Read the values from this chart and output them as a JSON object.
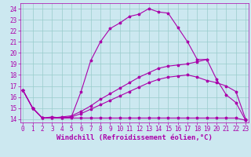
{
  "xlabel": "Windchill (Refroidissement éolien,°C)",
  "bg_color": "#cce8f0",
  "line_color": "#aa00aa",
  "grid_color": "#99cccc",
  "x_ticks": [
    0,
    1,
    2,
    3,
    4,
    5,
    6,
    7,
    8,
    9,
    10,
    11,
    12,
    13,
    14,
    15,
    16,
    17,
    18,
    19,
    20,
    21,
    22,
    23
  ],
  "y_ticks": [
    14,
    15,
    16,
    17,
    18,
    19,
    20,
    21,
    22,
    23,
    24
  ],
  "xlim": [
    -0.3,
    23.3
  ],
  "ylim": [
    13.7,
    24.5
  ],
  "line1_x": [
    0,
    1,
    2,
    3,
    4,
    5,
    6,
    7,
    8,
    9,
    10,
    11,
    12,
    13,
    14,
    15,
    16,
    17,
    18,
    19
  ],
  "line1_y": [
    16.6,
    15.0,
    14.1,
    14.2,
    14.1,
    14.2,
    16.5,
    19.3,
    21.0,
    22.2,
    22.7,
    23.3,
    23.5,
    24.0,
    23.7,
    23.6,
    22.3,
    21.0,
    19.4,
    19.4
  ],
  "line2_x": [
    0,
    1,
    2,
    3,
    4,
    5,
    6,
    7,
    8,
    9,
    10,
    11,
    12,
    13,
    14,
    15,
    16,
    17,
    18,
    19,
    20,
    21,
    22,
    23
  ],
  "line2_y": [
    16.6,
    15.0,
    14.1,
    14.1,
    14.1,
    14.1,
    14.1,
    14.1,
    14.1,
    14.1,
    14.1,
    14.1,
    14.1,
    14.1,
    14.1,
    14.1,
    14.1,
    14.1,
    14.1,
    14.1,
    14.1,
    14.1,
    14.1,
    13.9
  ],
  "line3_x": [
    0,
    1,
    2,
    3,
    4,
    5,
    6,
    7,
    8,
    9,
    10,
    11,
    12,
    13,
    14,
    15,
    16,
    17,
    18,
    19,
    20,
    21,
    22,
    23
  ],
  "line3_y": [
    16.6,
    15.0,
    14.1,
    14.1,
    14.1,
    14.2,
    14.5,
    14.9,
    15.3,
    15.7,
    16.1,
    16.5,
    16.9,
    17.3,
    17.6,
    17.8,
    17.9,
    18.0,
    17.8,
    17.5,
    17.3,
    17.0,
    16.5,
    14.0
  ],
  "line4_x": [
    0,
    1,
    2,
    3,
    4,
    5,
    6,
    7,
    8,
    9,
    10,
    11,
    12,
    13,
    14,
    15,
    16,
    17,
    18,
    19,
    20,
    21,
    22,
    23
  ],
  "line4_y": [
    16.6,
    15.0,
    14.1,
    14.1,
    14.2,
    14.3,
    14.7,
    15.2,
    15.8,
    16.3,
    16.8,
    17.3,
    17.8,
    18.2,
    18.6,
    18.8,
    18.9,
    19.0,
    19.2,
    19.4,
    17.6,
    16.2,
    15.5,
    13.9
  ],
  "tick_fontsize": 5.5,
  "label_fontsize": 6.5
}
